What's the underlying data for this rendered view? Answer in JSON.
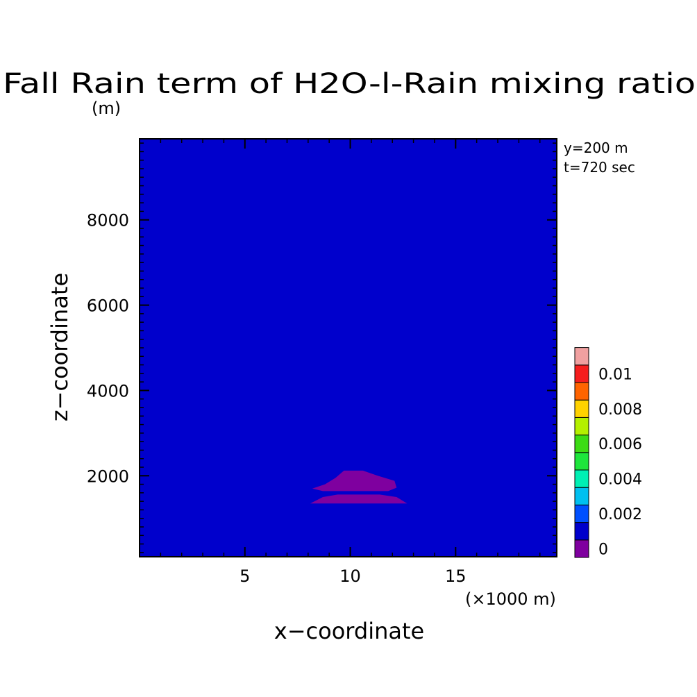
{
  "chart_data": {
    "type": "heatmap",
    "title": "Fall Rain term of H2O-l-Rain mixing ratio",
    "ylabel_unit": "(m)",
    "xlabel": "x−coordinate",
    "xlabel_unit": "(×1000 m)",
    "ylabel": "z−coordinate",
    "annotations": [
      "y=200 m",
      "t=720 sec"
    ],
    "xlim": [
      0,
      19.8
    ],
    "ylim": [
      100,
      9900
    ],
    "x_ticks": [
      {
        "value": 5,
        "label": "5"
      },
      {
        "value": 10,
        "label": "10"
      },
      {
        "value": 15,
        "label": "15"
      }
    ],
    "y_ticks": [
      {
        "value": 2000,
        "label": "2000"
      },
      {
        "value": 4000,
        "label": "4000"
      },
      {
        "value": 6000,
        "label": "6000"
      },
      {
        "value": 8000,
        "label": "8000"
      }
    ],
    "background_level_color": "#0000cc",
    "regions": [
      {
        "name": "negative-region",
        "color": "#7f009f",
        "level": "below 0",
        "polygon": [
          [
            8.2,
            1400
          ],
          [
            8.8,
            1520
          ],
          [
            9.4,
            1580
          ],
          [
            10.0,
            1600
          ],
          [
            10.6,
            1580
          ],
          [
            11.2,
            1520
          ],
          [
            11.8,
            1500
          ],
          [
            12.2,
            1800
          ],
          [
            11.2,
            2000
          ],
          [
            10.0,
            2150
          ],
          [
            8.8,
            2000
          ],
          [
            8.2,
            1800
          ],
          [
            8.8,
            1520
          ],
          [
            12.6,
            1400
          ],
          [
            12.0,
            1570
          ],
          [
            10.0,
            1600
          ],
          [
            8.6,
            1560
          ]
        ]
      }
    ],
    "colorbar": {
      "levels": [
        {
          "color": "#7f009f",
          "label": "0"
        },
        {
          "color": "#0000cc",
          "label": ""
        },
        {
          "color": "#0050ff",
          "label": "0.002"
        },
        {
          "color": "#00c0f0",
          "label": ""
        },
        {
          "color": "#00f0b4",
          "label": "0.004"
        },
        {
          "color": "#1ee63c",
          "label": ""
        },
        {
          "color": "#3cdc14",
          "label": "0.006"
        },
        {
          "color": "#b4f000",
          "label": ""
        },
        {
          "color": "#ffd200",
          "label": "0.008"
        },
        {
          "color": "#ff6400",
          "label": ""
        },
        {
          "color": "#f51e1e",
          "label": "0.01"
        },
        {
          "color": "#f0a0a0",
          "label": ""
        }
      ]
    }
  }
}
